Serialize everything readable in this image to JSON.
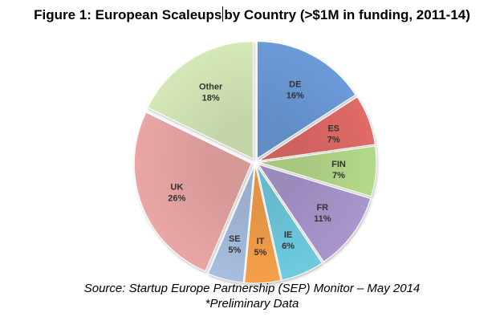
{
  "title_part1": "Figure 1:  European Scaleups",
  "title_part2": "by Country (>$1M in funding, 2011-14)",
  "source_line1": "Source: Startup Europe Partnership (SEP) Monitor – May 2014",
  "source_line2": "*Preliminary Data",
  "chart_data": {
    "type": "pie",
    "slices": [
      {
        "label": "DE",
        "percent_label": "16%",
        "value": 16,
        "color": "#6B9AD8"
      },
      {
        "label": "ES",
        "percent_label": "7%",
        "value": 7,
        "color": "#E06A67"
      },
      {
        "label": "FIN",
        "percent_label": "7%",
        "value": 7,
        "color": "#B5D98A"
      },
      {
        "label": "FR",
        "percent_label": "11%",
        "value": 11,
        "color": "#A896CC"
      },
      {
        "label": "IE",
        "percent_label": "6%",
        "value": 6,
        "color": "#6FCBE0"
      },
      {
        "label": "IT",
        "percent_label": "5%",
        "value": 5,
        "color": "#F6A04A"
      },
      {
        "label": "SE",
        "percent_label": "5%",
        "value": 5,
        "color": "#A7BEE0"
      },
      {
        "label": "UK",
        "percent_label": "26%",
        "value": 26,
        "color": "#EAA6A5"
      },
      {
        "label": "Other",
        "percent_label": "18%",
        "value": 18,
        "color": "#D5E8B7"
      }
    ]
  }
}
